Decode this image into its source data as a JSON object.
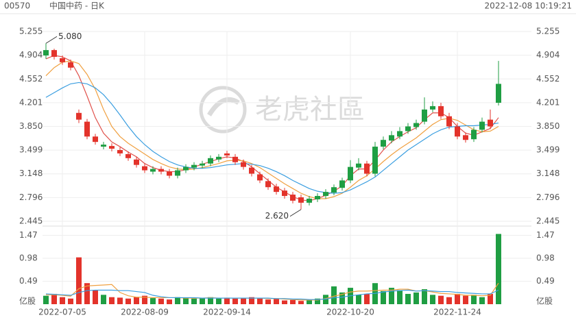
{
  "header": {
    "code": "00570",
    "name": "中国中药 - 日K",
    "time": "2022-12-08 10:19:21"
  },
  "watermark": "老虎社區",
  "chart_data": [
    {
      "type": "candlestick",
      "categories": [
        null,
        null,
        "2022-07-05",
        null,
        null,
        null,
        null,
        null,
        null,
        null,
        null,
        null,
        "2022-08-09",
        null,
        null,
        null,
        null,
        null,
        null,
        null,
        null,
        null,
        "2022-09-14",
        null,
        null,
        null,
        null,
        null,
        null,
        null,
        null,
        null,
        null,
        null,
        null,
        null,
        null,
        "2022-10-20",
        null,
        null,
        null,
        null,
        null,
        null,
        null,
        null,
        null,
        null,
        null,
        null,
        "2022-11-24",
        null,
        null,
        null,
        null,
        null
      ],
      "open": [
        4.9,
        4.98,
        4.86,
        4.8,
        4.05,
        3.92,
        3.7,
        3.55,
        3.56,
        3.5,
        3.44,
        3.36,
        3.26,
        3.18,
        3.22,
        3.18,
        3.12,
        3.2,
        3.24,
        3.27,
        3.3,
        3.36,
        3.45,
        3.4,
        3.32,
        3.24,
        3.14,
        3.04,
        2.96,
        2.9,
        2.84,
        2.8,
        2.72,
        2.77,
        2.82,
        2.87,
        2.94,
        3.05,
        3.24,
        3.3,
        3.15,
        3.55,
        3.64,
        3.7,
        3.78,
        3.84,
        3.92,
        4.1,
        4.15,
        4.0,
        3.85,
        3.72,
        3.66,
        3.8,
        3.95,
        4.2
      ],
      "high": [
        5.08,
        5.0,
        4.9,
        4.84,
        4.1,
        3.96,
        3.74,
        3.62,
        3.6,
        3.54,
        3.48,
        3.4,
        3.3,
        3.26,
        3.26,
        3.22,
        3.24,
        3.29,
        3.32,
        3.34,
        3.42,
        3.44,
        3.49,
        3.44,
        3.36,
        3.28,
        3.18,
        3.08,
        3.0,
        2.94,
        2.88,
        2.84,
        2.82,
        2.86,
        2.92,
        2.99,
        3.09,
        3.35,
        3.38,
        3.34,
        3.62,
        3.7,
        3.78,
        3.84,
        3.9,
        3.95,
        4.28,
        4.22,
        4.2,
        4.05,
        3.9,
        3.76,
        3.84,
        3.98,
        4.1,
        4.82
      ],
      "low": [
        4.85,
        4.84,
        4.76,
        4.68,
        3.9,
        3.66,
        3.58,
        3.51,
        3.48,
        3.41,
        3.34,
        3.24,
        3.16,
        3.14,
        3.14,
        3.08,
        3.08,
        3.16,
        3.2,
        3.23,
        3.26,
        3.32,
        3.38,
        3.28,
        3.21,
        3.11,
        3.01,
        2.91,
        2.84,
        2.78,
        2.71,
        2.62,
        2.68,
        2.73,
        2.78,
        2.83,
        2.9,
        3.01,
        3.2,
        3.11,
        3.11,
        3.51,
        3.6,
        3.66,
        3.74,
        3.8,
        3.88,
        4.06,
        3.96,
        3.81,
        3.66,
        3.61,
        3.62,
        3.76,
        3.81,
        4.16
      ],
      "close": [
        4.98,
        4.88,
        4.8,
        4.72,
        3.95,
        3.7,
        3.62,
        3.58,
        3.52,
        3.45,
        3.38,
        3.28,
        3.2,
        3.22,
        3.18,
        3.12,
        3.2,
        3.25,
        3.28,
        3.3,
        3.38,
        3.4,
        3.42,
        3.32,
        3.25,
        3.15,
        3.05,
        2.95,
        2.88,
        2.82,
        2.75,
        2.72,
        2.78,
        2.82,
        2.88,
        2.95,
        3.05,
        3.25,
        3.3,
        3.15,
        3.55,
        3.65,
        3.72,
        3.78,
        3.85,
        3.9,
        4.1,
        4.15,
        4.0,
        3.85,
        3.7,
        3.65,
        3.8,
        3.92,
        3.85,
        4.48
      ],
      "up_color": "#1f9e43",
      "down_color": "#e3332b",
      "series": [
        {
          "color": "#e0504a",
          "values": [
            4.85,
            4.9,
            4.88,
            4.82,
            4.6,
            4.3,
            3.98,
            3.75,
            3.62,
            3.55,
            3.47,
            3.4,
            3.3,
            3.24,
            3.2,
            3.18,
            3.18,
            3.21,
            3.25,
            3.29,
            3.33,
            3.37,
            3.4,
            3.38,
            3.33,
            3.25,
            3.15,
            3.05,
            2.95,
            2.88,
            2.81,
            2.76,
            2.75,
            2.78,
            2.83,
            2.89,
            2.97,
            3.12,
            3.22,
            3.22,
            3.35,
            3.5,
            3.62,
            3.7,
            3.77,
            3.83,
            3.95,
            4.05,
            4.05,
            3.98,
            3.85,
            3.75,
            3.72,
            3.77,
            3.82,
            3.98
          ]
        },
        {
          "color": "#f0a040",
          "values": [
            4.6,
            4.72,
            4.8,
            4.82,
            4.78,
            4.62,
            4.4,
            4.1,
            3.85,
            3.7,
            3.6,
            3.52,
            3.44,
            3.36,
            3.3,
            3.25,
            3.22,
            3.21,
            3.22,
            3.24,
            3.27,
            3.3,
            3.34,
            3.35,
            3.34,
            3.3,
            3.24,
            3.16,
            3.08,
            3.0,
            2.93,
            2.86,
            2.81,
            2.78,
            2.78,
            2.81,
            2.86,
            2.95,
            3.05,
            3.12,
            3.22,
            3.33,
            3.43,
            3.52,
            3.6,
            3.68,
            3.78,
            3.88,
            3.95,
            3.97,
            3.94,
            3.87,
            3.8,
            3.77,
            3.78,
            3.85
          ]
        },
        {
          "color": "#3a9ee0",
          "values": [
            4.28,
            4.35,
            4.42,
            4.48,
            4.5,
            4.48,
            4.42,
            4.32,
            4.18,
            4.02,
            3.85,
            3.7,
            3.58,
            3.48,
            3.4,
            3.33,
            3.28,
            3.25,
            3.23,
            3.23,
            3.24,
            3.26,
            3.28,
            3.29,
            3.3,
            3.29,
            3.27,
            3.23,
            3.18,
            3.12,
            3.05,
            2.99,
            2.93,
            2.89,
            2.87,
            2.86,
            2.87,
            2.91,
            2.97,
            3.03,
            3.1,
            3.2,
            3.3,
            3.4,
            3.5,
            3.58,
            3.66,
            3.74,
            3.8,
            3.84,
            3.85,
            3.86,
            3.86,
            3.87,
            3.88,
            3.9
          ]
        }
      ],
      "annotations": [
        {
          "label": "5.080",
          "value": 5.08
        },
        {
          "label": "2.620",
          "value": 2.62
        }
      ],
      "ylim": [
        2.445,
        5.255
      ],
      "yticks": [
        2.445,
        2.796,
        3.148,
        3.499,
        {
          "value": 3.85,
          "label": "3.850"
        },
        4.201,
        4.552,
        4.904,
        5.255
      ],
      "grid": true
    },
    {
      "type": "bar",
      "y_unit": "亿股",
      "values": [
        0.18,
        0.22,
        0.15,
        0.12,
        1.0,
        0.45,
        0.3,
        0.2,
        0.15,
        0.14,
        0.12,
        0.15,
        0.18,
        0.13,
        0.12,
        0.1,
        0.15,
        0.14,
        0.12,
        0.13,
        0.15,
        0.12,
        0.14,
        0.12,
        0.13,
        0.15,
        0.12,
        0.1,
        0.11,
        0.08,
        0.09,
        0.07,
        0.1,
        0.12,
        0.2,
        0.38,
        0.25,
        0.35,
        0.2,
        0.22,
        0.45,
        0.28,
        0.35,
        0.3,
        0.22,
        0.25,
        0.32,
        0.2,
        0.18,
        0.15,
        0.22,
        0.18,
        0.2,
        0.15,
        0.22,
        1.5
      ],
      "series": [
        {
          "color": "#f0a040",
          "values": [
            0.2,
            0.2,
            0.19,
            0.17,
            0.33,
            0.39,
            0.4,
            0.41,
            0.42,
            0.25,
            0.18,
            0.15,
            0.15,
            0.14,
            0.14,
            0.14,
            0.14,
            0.13,
            0.13,
            0.13,
            0.14,
            0.13,
            0.13,
            0.13,
            0.13,
            0.13,
            0.13,
            0.12,
            0.12,
            0.11,
            0.1,
            0.09,
            0.09,
            0.09,
            0.12,
            0.17,
            0.21,
            0.26,
            0.28,
            0.28,
            0.29,
            0.3,
            0.3,
            0.32,
            0.32,
            0.28,
            0.29,
            0.26,
            0.23,
            0.22,
            0.21,
            0.19,
            0.19,
            0.18,
            0.19,
            0.45
          ]
        },
        {
          "color": "#3a9ee0",
          "values": [
            0.22,
            0.21,
            0.2,
            0.19,
            0.25,
            0.29,
            0.3,
            0.3,
            0.3,
            0.29,
            0.29,
            0.27,
            0.25,
            0.19,
            0.16,
            0.14,
            0.14,
            0.14,
            0.14,
            0.13,
            0.13,
            0.13,
            0.13,
            0.13,
            0.13,
            0.13,
            0.13,
            0.13,
            0.12,
            0.12,
            0.11,
            0.11,
            0.1,
            0.1,
            0.11,
            0.14,
            0.15,
            0.18,
            0.2,
            0.22,
            0.23,
            0.26,
            0.28,
            0.29,
            0.3,
            0.28,
            0.29,
            0.28,
            0.27,
            0.27,
            0.25,
            0.24,
            0.23,
            0.22,
            0.22,
            0.3
          ]
        }
      ],
      "ylim": [
        0,
        1.58
      ],
      "yticks": [
        0.49,
        0.98,
        1.47
      ],
      "grid": true
    }
  ]
}
